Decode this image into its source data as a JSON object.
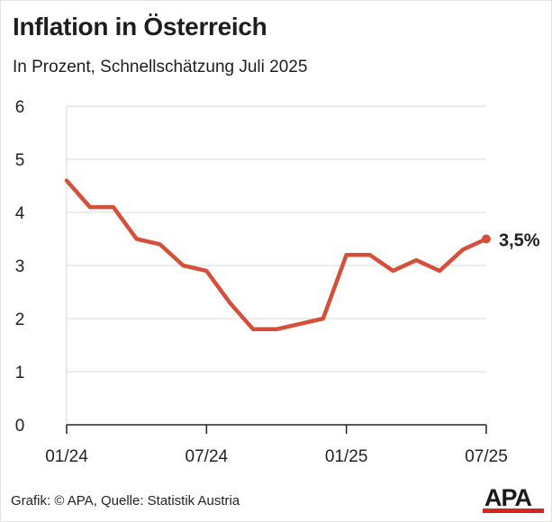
{
  "title": "Inflation in Österreich",
  "subtitle": "In Prozent, Schnellschätzung Juli 2025",
  "footer": "Grafik: © APA, Quelle: Statistik Austria",
  "logo": "APA",
  "colors": {
    "line": "#d4503a",
    "grid": "#d9d9d9",
    "axis": "#222222",
    "brand": "#d7241c"
  },
  "chart_data": {
    "type": "line",
    "title": "Inflation in Österreich",
    "subtitle": "In Prozent, Schnellschätzung Juli 2025",
    "ylim": [
      0,
      6
    ],
    "yticks": [
      0,
      1,
      2,
      3,
      4,
      5,
      6
    ],
    "xticks": [
      {
        "index": 0,
        "label": "01/24"
      },
      {
        "index": 6,
        "label": "07/24"
      },
      {
        "index": 12,
        "label": "01/25"
      },
      {
        "index": 18,
        "label": "07/25"
      }
    ],
    "grid": true,
    "series": [
      {
        "name": "Inflation",
        "x": [
          "01/24",
          "02/24",
          "03/24",
          "04/24",
          "05/24",
          "06/24",
          "07/24",
          "08/24",
          "09/24",
          "10/24",
          "11/24",
          "12/24",
          "01/25",
          "02/25",
          "03/25",
          "04/25",
          "05/25",
          "06/25",
          "07/25"
        ],
        "values": [
          4.6,
          4.1,
          4.1,
          3.5,
          3.4,
          3.0,
          2.9,
          2.3,
          1.8,
          1.8,
          1.9,
          2.0,
          3.2,
          3.2,
          2.9,
          3.1,
          2.9,
          3.3,
          3.5
        ]
      }
    ],
    "end_label": "3,5%"
  }
}
